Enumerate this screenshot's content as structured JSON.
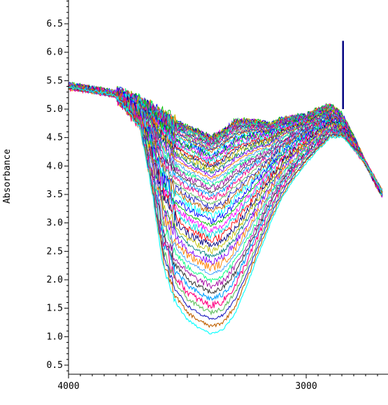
{
  "chart_data": {
    "type": "line",
    "title": "",
    "ylabel": "Absorbance",
    "xlabel": "",
    "x_axis": {
      "reversed": true,
      "range": [
        4000,
        2680
      ],
      "major_ticks": [
        4000,
        3000
      ],
      "tick_labels": [
        "4000",
        "3000"
      ]
    },
    "y_axis": {
      "range": [
        0.4,
        6.9
      ],
      "major_ticks": [
        0.5,
        1.0,
        1.5,
        2.0,
        2.5,
        3.0,
        3.5,
        4.0,
        4.5,
        5.0,
        5.5,
        6.0,
        6.5
      ],
      "tick_labels": [
        "0.5",
        "1.0",
        "1.5",
        "2.0",
        "2.5",
        "3.0",
        "3.5",
        "4.0",
        "4.5",
        "5.0",
        "5.5",
        "6.0",
        "6.5"
      ]
    },
    "grid": false,
    "legend": "none",
    "series_count": 60,
    "series_shape": {
      "x_points": [
        4000,
        3900,
        3800,
        3700,
        3650,
        3600,
        3550,
        3500,
        3450,
        3400,
        3350,
        3300,
        3250,
        3200,
        3150,
        3100,
        3050,
        3000,
        2950,
        2900,
        2850,
        2800,
        2750,
        2700,
        2680
      ],
      "base_top": [
        5.42,
        5.36,
        5.28,
        5.12,
        5.02,
        4.88,
        4.78,
        4.68,
        4.6,
        4.5,
        4.62,
        4.78,
        4.8,
        4.78,
        4.72,
        4.82,
        4.86,
        4.88,
        4.98,
        5.06,
        4.9,
        4.5,
        4.05,
        3.62,
        3.5
      ],
      "base_bottom": [
        5.38,
        5.32,
        5.24,
        4.7,
        3.6,
        2.2,
        1.6,
        1.3,
        1.15,
        1.05,
        1.12,
        1.4,
        1.9,
        2.45,
        3.0,
        3.45,
        3.78,
        4.05,
        4.28,
        4.5,
        4.52,
        4.3,
        4.05,
        3.7,
        3.55
      ]
    },
    "colors": [
      "#0000ff",
      "#00c000",
      "#ff00ff",
      "#00e0e0",
      "#ff0000",
      "#000080",
      "#c0c000",
      "#008080",
      "#8000ff",
      "#ff8000",
      "#40a0ff",
      "#00ff80",
      "#a000a0",
      "#404040",
      "#00a0ff",
      "#ff0080",
      "#60c060",
      "#2020c0",
      "#c06000",
      "#00ffff"
    ]
  }
}
